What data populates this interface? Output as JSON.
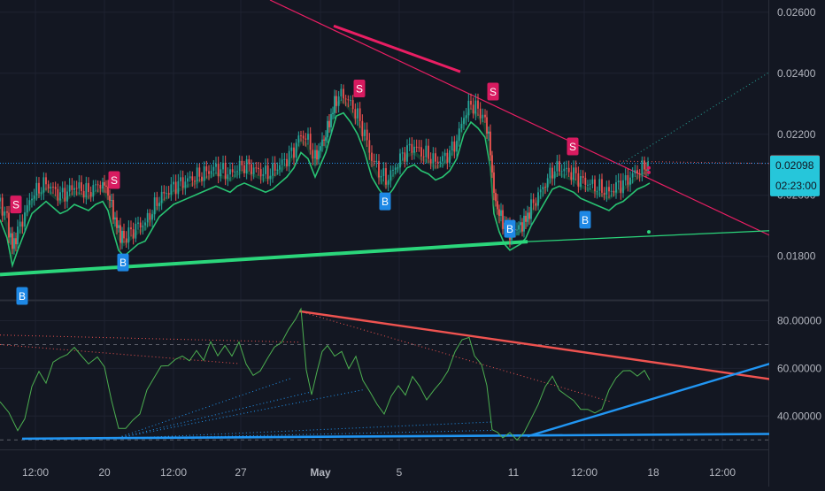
{
  "theme": {
    "background": "#131722",
    "grid": "#1e2230",
    "axis_text": "#b2b5be",
    "up": "#26a69a",
    "down": "#ef5350",
    "band": "#2bd67b",
    "trend_magenta": "#e91e63",
    "support_green": "#2bd67b",
    "rsi_line": "#4caf50",
    "rsi_trend_red": "#ef5350",
    "rsi_trend_blue": "#2196f3",
    "price_line": "#2196f3",
    "badge_sell": "#d81b60",
    "badge_buy": "#1e88e5"
  },
  "chart_data": [
    {
      "type": "candlestick",
      "panel": "price",
      "ylim": [
        0.0166,
        0.0264
      ],
      "yticks": [
        "0.01800",
        "0.02000",
        "0.02200",
        "0.02400",
        "0.02600"
      ],
      "series": [
        {
          "name": "close",
          "points": [
            [
              0,
              0.0198
            ],
            [
              8,
              0.0192
            ],
            [
              14,
              0.0183
            ],
            [
              20,
              0.0188
            ],
            [
              28,
              0.0194
            ],
            [
              36,
              0.02
            ],
            [
              44,
              0.0202
            ],
            [
              52,
              0.0204
            ],
            [
              60,
              0.0202
            ],
            [
              68,
              0.02
            ],
            [
              76,
              0.0201
            ],
            [
              84,
              0.0203
            ],
            [
              92,
              0.0202
            ],
            [
              100,
              0.0201
            ],
            [
              108,
              0.0203
            ],
            [
              116,
              0.0204
            ],
            [
              122,
              0.0201
            ],
            [
              128,
              0.0194
            ],
            [
              134,
              0.0188
            ],
            [
              140,
              0.0186
            ],
            [
              148,
              0.0188
            ],
            [
              156,
              0.019
            ],
            [
              164,
              0.0191
            ],
            [
              172,
              0.0195
            ],
            [
              180,
              0.0199
            ],
            [
              188,
              0.0201
            ],
            [
              196,
              0.0203
            ],
            [
              204,
              0.0204
            ],
            [
              212,
              0.0205
            ],
            [
              220,
              0.0206
            ],
            [
              228,
              0.0207
            ],
            [
              236,
              0.0208
            ],
            [
              244,
              0.0209
            ],
            [
              252,
              0.0208
            ],
            [
              260,
              0.0207
            ],
            [
              268,
              0.0209
            ],
            [
              276,
              0.021
            ],
            [
              284,
              0.0209
            ],
            [
              292,
              0.0208
            ],
            [
              300,
              0.0207
            ],
            [
              308,
              0.0208
            ],
            [
              316,
              0.021
            ],
            [
              324,
              0.0212
            ],
            [
              332,
              0.0215
            ],
            [
              340,
              0.022
            ],
            [
              348,
              0.0218
            ],
            [
              356,
              0.0212
            ],
            [
              362,
              0.0216
            ],
            [
              368,
              0.022
            ],
            [
              374,
              0.0226
            ],
            [
              380,
              0.0232
            ],
            [
              388,
              0.0233
            ],
            [
              396,
              0.023
            ],
            [
              404,
              0.0226
            ],
            [
              412,
              0.022
            ],
            [
              420,
              0.0212
            ],
            [
              428,
              0.0208
            ],
            [
              436,
              0.0205
            ],
            [
              444,
              0.0208
            ],
            [
              452,
              0.0212
            ],
            [
              460,
              0.0215
            ],
            [
              468,
              0.0216
            ],
            [
              476,
              0.0214
            ],
            [
              484,
              0.0213
            ],
            [
              492,
              0.0211
            ],
            [
              500,
              0.0212
            ],
            [
              508,
              0.0214
            ],
            [
              516,
              0.0218
            ],
            [
              524,
              0.0226
            ],
            [
              532,
              0.023
            ],
            [
              540,
              0.0228
            ],
            [
              548,
              0.0225
            ],
            [
              554,
              0.0215
            ],
            [
              558,
              0.02
            ],
            [
              564,
              0.0194
            ],
            [
              570,
              0.019
            ],
            [
              576,
              0.0188
            ],
            [
              582,
              0.0189
            ],
            [
              588,
              0.019
            ],
            [
              594,
              0.0192
            ],
            [
              600,
              0.0196
            ],
            [
              608,
              0.02
            ],
            [
              616,
              0.0204
            ],
            [
              624,
              0.0208
            ],
            [
              632,
              0.0209
            ],
            [
              640,
              0.0208
            ],
            [
              648,
              0.0207
            ],
            [
              656,
              0.0205
            ],
            [
              664,
              0.0204
            ],
            [
              672,
              0.0203
            ],
            [
              680,
              0.0202
            ],
            [
              688,
              0.0201
            ],
            [
              696,
              0.0203
            ],
            [
              704,
              0.0204
            ],
            [
              712,
              0.0206
            ],
            [
              720,
              0.0208
            ],
            [
              728,
              0.0209
            ],
            [
              734,
              0.021
            ]
          ]
        },
        {
          "name": "last_price",
          "value": 0.02105
        }
      ],
      "price_labels": {
        "last": "0.02105",
        "current": "0.02098",
        "countdown": "02:23:00"
      },
      "signals": [
        {
          "label": "S",
          "kind": "sell",
          "x": 18,
          "price": 0.0197
        },
        {
          "label": "S",
          "kind": "sell",
          "x": 129,
          "price": 0.0205
        },
        {
          "label": "S",
          "kind": "sell",
          "x": 406,
          "price": 0.0235
        },
        {
          "label": "S",
          "kind": "sell",
          "x": 557,
          "price": 0.0234
        },
        {
          "label": "S",
          "kind": "sell",
          "x": 647,
          "price": 0.0216
        },
        {
          "label": "B",
          "kind": "buy",
          "x": 25,
          "price": 0.0167
        },
        {
          "label": "B",
          "kind": "buy",
          "x": 139,
          "price": 0.0178
        },
        {
          "label": "B",
          "kind": "buy",
          "x": 435,
          "price": 0.0198
        },
        {
          "label": "B",
          "kind": "buy",
          "x": 576,
          "price": 0.0189
        },
        {
          "label": "B",
          "kind": "buy",
          "x": 661,
          "price": 0.0192
        }
      ]
    },
    {
      "type": "line",
      "panel": "rsi",
      "ylim": [
        26,
        88
      ],
      "yticks": [
        "40.00000",
        "60.00000",
        "80.00000"
      ],
      "levels": [
        70,
        30
      ],
      "series": [
        {
          "name": "rsi",
          "points": [
            [
              0,
              46
            ],
            [
              10,
              41
            ],
            [
              20,
              33
            ],
            [
              28,
              40
            ],
            [
              36,
              52
            ],
            [
              44,
              58
            ],
            [
              52,
              55
            ],
            [
              60,
              62
            ],
            [
              68,
              64
            ],
            [
              76,
              67
            ],
            [
              84,
              68
            ],
            [
              92,
              65
            ],
            [
              100,
              63
            ],
            [
              110,
              66
            ],
            [
              118,
              60
            ],
            [
              126,
              46
            ],
            [
              134,
              36
            ],
            [
              142,
              34
            ],
            [
              150,
              38
            ],
            [
              158,
              42
            ],
            [
              166,
              50
            ],
            [
              174,
              56
            ],
            [
              182,
              62
            ],
            [
              190,
              60
            ],
            [
              198,
              64
            ],
            [
              206,
              66
            ],
            [
              214,
              62
            ],
            [
              222,
              68
            ],
            [
              230,
              64
            ],
            [
              238,
              70
            ],
            [
              246,
              66
            ],
            [
              254,
              70
            ],
            [
              262,
              64
            ],
            [
              270,
              72
            ],
            [
              278,
              62
            ],
            [
              286,
              56
            ],
            [
              294,
              60
            ],
            [
              302,
              64
            ],
            [
              310,
              68
            ],
            [
              318,
              72
            ],
            [
              326,
              76
            ],
            [
              334,
              80
            ],
            [
              340,
              84
            ],
            [
              346,
              60
            ],
            [
              352,
              50
            ],
            [
              358,
              58
            ],
            [
              364,
              66
            ],
            [
              370,
              70
            ],
            [
              378,
              64
            ],
            [
              386,
              68
            ],
            [
              394,
              60
            ],
            [
              402,
              64
            ],
            [
              410,
              56
            ],
            [
              418,
              50
            ],
            [
              426,
              44
            ],
            [
              434,
              42
            ],
            [
              442,
              48
            ],
            [
              450,
              52
            ],
            [
              458,
              50
            ],
            [
              466,
              56
            ],
            [
              474,
              52
            ],
            [
              482,
              48
            ],
            [
              490,
              50
            ],
            [
              498,
              54
            ],
            [
              506,
              60
            ],
            [
              514,
              66
            ],
            [
              522,
              72
            ],
            [
              530,
              74
            ],
            [
              536,
              66
            ],
            [
              544,
              62
            ],
            [
              550,
              54
            ],
            [
              556,
              34
            ],
            [
              562,
              32
            ],
            [
              568,
              31
            ],
            [
              576,
              32
            ],
            [
              584,
              31
            ],
            [
              592,
              33
            ],
            [
              600,
              38
            ],
            [
              608,
              46
            ],
            [
              616,
              52
            ],
            [
              624,
              56
            ],
            [
              632,
              52
            ],
            [
              640,
              48
            ],
            [
              648,
              46
            ],
            [
              656,
              44
            ],
            [
              664,
              42
            ],
            [
              672,
              41
            ],
            [
              680,
              44
            ],
            [
              688,
              50
            ],
            [
              696,
              56
            ],
            [
              704,
              60
            ],
            [
              712,
              58
            ],
            [
              720,
              57
            ],
            [
              728,
              60
            ],
            [
              734,
              56
            ]
          ]
        }
      ]
    }
  ],
  "x_axis": {
    "labels": [
      {
        "text": "12:00",
        "x": 40,
        "bold": false
      },
      {
        "text": "20",
        "x": 118,
        "bold": false
      },
      {
        "text": "12:00",
        "x": 196,
        "bold": false
      },
      {
        "text": "27",
        "x": 272,
        "bold": false
      },
      {
        "text": "May",
        "x": 362,
        "bold": true
      },
      {
        "text": "5",
        "x": 451,
        "bold": false
      },
      {
        "text": "11",
        "x": 580,
        "bold": false
      },
      {
        "text": "12:00",
        "x": 660,
        "bold": false
      },
      {
        "text": "18",
        "x": 738,
        "bold": false
      },
      {
        "text": "12:00",
        "x": 816,
        "bold": false
      }
    ]
  }
}
